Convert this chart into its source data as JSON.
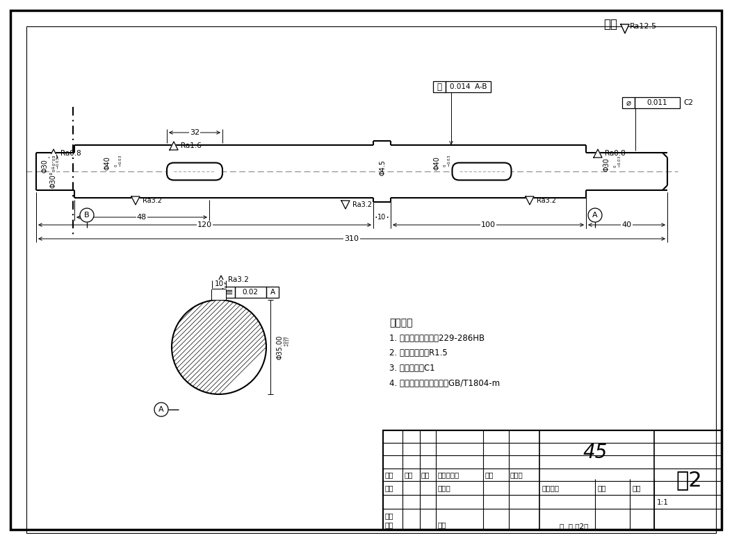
{
  "title": "轴2",
  "material": "45",
  "scale": "1:1",
  "bg_color": "#ffffff",
  "line_color": "#000000",
  "tech_requirements": [
    "技术要求",
    "1. 调质处理后硬度为229-286HB",
    "2. 全部侧圆角为R1.5",
    "3. 未注倒角为C1",
    "4. 未注尺寸公差按等级为GB/T1804-m"
  ],
  "surface_finish_main": "Ra12.5",
  "runout_tol": "0.014  A-B",
  "cylindricity_tol": "0.011",
  "flatness_tol": "0.02  A",
  "dim_32": "32",
  "dim_48": "48",
  "dim_120": "120",
  "dim_10": "10",
  "dim_100": "100",
  "dim_40": "40",
  "dim_310": "310",
  "dia_30": "Φ30",
  "dia_40": "Φ40",
  "dia_45": "Φ4.5",
  "dia_35": "Φ35.00"
}
